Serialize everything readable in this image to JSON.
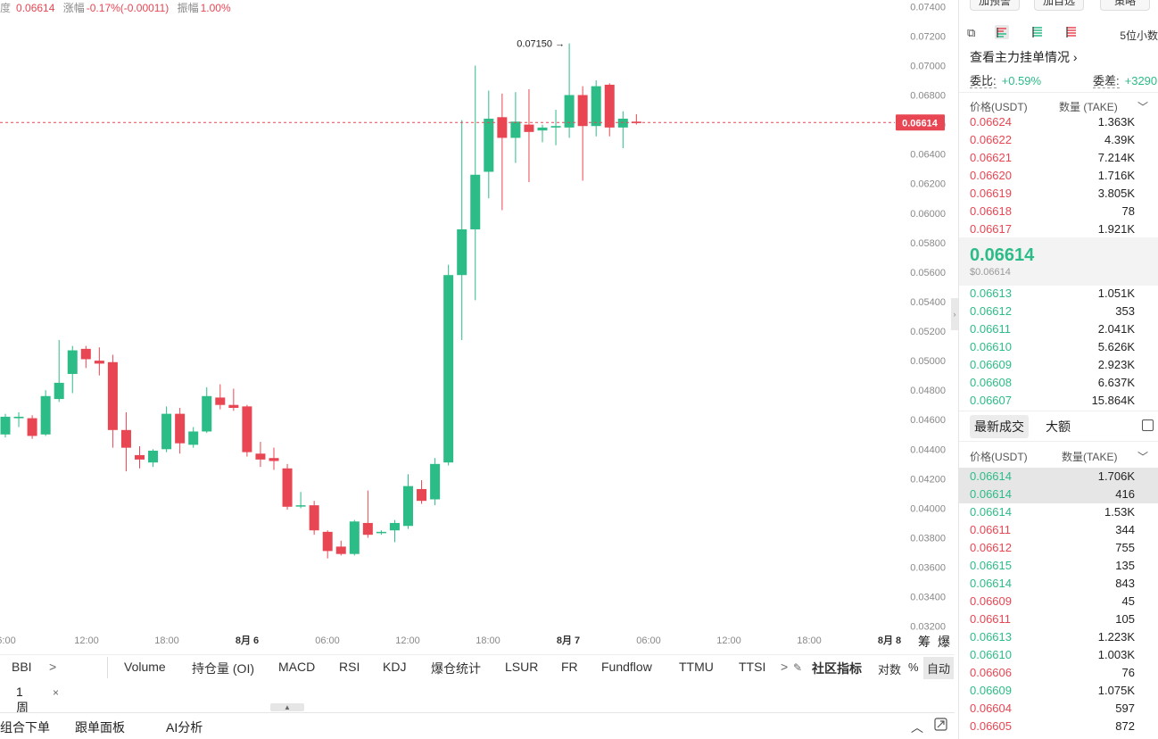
{
  "info_bar": {
    "price": "0.06614",
    "change_label": "涨幅",
    "change": "-0.17%(-0.00011)",
    "amplitude_label": "振幅",
    "amplitude": "1.00%"
  },
  "chart_data": {
    "type": "candlestick",
    "price_axis": {
      "ticks": [
        "0.07400",
        "0.07200",
        "0.07000",
        "0.06800",
        "0.06600",
        "0.06400",
        "0.06200",
        "0.06000",
        "0.05800",
        "0.05600",
        "0.05400",
        "0.05200",
        "0.05000",
        "0.04800",
        "0.04600",
        "0.04400",
        "0.04200",
        "0.04000",
        "0.03800",
        "0.03600",
        "0.03400",
        "0.03200"
      ],
      "range": [
        0.0318,
        0.0742
      ]
    },
    "time_axis": {
      "ticks": [
        {
          "label": "6:00",
          "bold": false
        },
        {
          "label": "12:00",
          "bold": false
        },
        {
          "label": "18:00",
          "bold": false
        },
        {
          "label": "8月 6",
          "bold": true
        },
        {
          "label": "06:00",
          "bold": false
        },
        {
          "label": "12:00",
          "bold": false
        },
        {
          "label": "18:00",
          "bold": false
        },
        {
          "label": "8月 7",
          "bold": true
        },
        {
          "label": "06:00",
          "bold": false
        },
        {
          "label": "12:00",
          "bold": false
        },
        {
          "label": "18:00",
          "bold": false
        },
        {
          "label": "8月 8",
          "bold": true
        }
      ]
    },
    "current_price": "0.06614",
    "max_annotation": "0.07150",
    "colors": {
      "up": "#2cbc87",
      "down": "#e84653"
    },
    "candles": [
      {
        "o": 0.045,
        "h": 0.0464,
        "l": 0.0448,
        "c": 0.0462
      },
      {
        "o": 0.0461,
        "h": 0.0465,
        "l": 0.0455,
        "c": 0.0462
      },
      {
        "o": 0.0461,
        "h": 0.0463,
        "l": 0.0447,
        "c": 0.0449
      },
      {
        "o": 0.045,
        "h": 0.048,
        "l": 0.0449,
        "c": 0.0476
      },
      {
        "o": 0.0474,
        "h": 0.0514,
        "l": 0.0472,
        "c": 0.0485
      },
      {
        "o": 0.0491,
        "h": 0.051,
        "l": 0.0478,
        "c": 0.0507
      },
      {
        "o": 0.0508,
        "h": 0.051,
        "l": 0.0495,
        "c": 0.0501
      },
      {
        "o": 0.05,
        "h": 0.0509,
        "l": 0.049,
        "c": 0.0498
      },
      {
        "o": 0.0499,
        "h": 0.0504,
        "l": 0.0441,
        "c": 0.0453
      },
      {
        "o": 0.0453,
        "h": 0.0465,
        "l": 0.0425,
        "c": 0.0441
      },
      {
        "o": 0.0436,
        "h": 0.0442,
        "l": 0.0427,
        "c": 0.0433
      },
      {
        "o": 0.0431,
        "h": 0.044,
        "l": 0.0428,
        "c": 0.0439
      },
      {
        "o": 0.044,
        "h": 0.0469,
        "l": 0.0438,
        "c": 0.0464
      },
      {
        "o": 0.0464,
        "h": 0.0468,
        "l": 0.0437,
        "c": 0.0444
      },
      {
        "o": 0.0443,
        "h": 0.0455,
        "l": 0.0441,
        "c": 0.0452
      },
      {
        "o": 0.0452,
        "h": 0.0482,
        "l": 0.0451,
        "c": 0.0476
      },
      {
        "o": 0.0475,
        "h": 0.0484,
        "l": 0.0467,
        "c": 0.047
      },
      {
        "o": 0.047,
        "h": 0.0481,
        "l": 0.0466,
        "c": 0.0468
      },
      {
        "o": 0.0469,
        "h": 0.047,
        "l": 0.0435,
        "c": 0.0438
      },
      {
        "o": 0.0437,
        "h": 0.0445,
        "l": 0.0428,
        "c": 0.0433
      },
      {
        "o": 0.0434,
        "h": 0.0441,
        "l": 0.0426,
        "c": 0.0432
      },
      {
        "o": 0.0427,
        "h": 0.043,
        "l": 0.0399,
        "c": 0.0401
      },
      {
        "o": 0.0402,
        "h": 0.0411,
        "l": 0.04,
        "c": 0.0402
      },
      {
        "o": 0.0402,
        "h": 0.0405,
        "l": 0.0382,
        "c": 0.0385
      },
      {
        "o": 0.0384,
        "h": 0.0385,
        "l": 0.0366,
        "c": 0.0371
      },
      {
        "o": 0.0374,
        "h": 0.0378,
        "l": 0.0368,
        "c": 0.0369
      },
      {
        "o": 0.0369,
        "h": 0.0392,
        "l": 0.0368,
        "c": 0.0391
      },
      {
        "o": 0.039,
        "h": 0.0412,
        "l": 0.038,
        "c": 0.0382
      },
      {
        "o": 0.0384,
        "h": 0.0385,
        "l": 0.0382,
        "c": 0.0384
      },
      {
        "o": 0.0385,
        "h": 0.0392,
        "l": 0.0377,
        "c": 0.039
      },
      {
        "o": 0.0388,
        "h": 0.0423,
        "l": 0.0386,
        "c": 0.0415
      },
      {
        "o": 0.0413,
        "h": 0.0419,
        "l": 0.0403,
        "c": 0.0405
      },
      {
        "o": 0.0406,
        "h": 0.0434,
        "l": 0.0402,
        "c": 0.043
      },
      {
        "o": 0.0431,
        "h": 0.0565,
        "l": 0.0429,
        "c": 0.0558
      },
      {
        "o": 0.0558,
        "h": 0.0663,
        "l": 0.0514,
        "c": 0.0589
      },
      {
        "o": 0.0589,
        "h": 0.07,
        "l": 0.0541,
        "c": 0.0626
      },
      {
        "o": 0.0628,
        "h": 0.0683,
        "l": 0.061,
        "c": 0.0664
      },
      {
        "o": 0.0665,
        "h": 0.0681,
        "l": 0.0602,
        "c": 0.0651
      },
      {
        "o": 0.0651,
        "h": 0.0682,
        "l": 0.0634,
        "c": 0.0662
      },
      {
        "o": 0.066,
        "h": 0.0684,
        "l": 0.0621,
        "c": 0.0655
      },
      {
        "o": 0.0656,
        "h": 0.066,
        "l": 0.0648,
        "c": 0.0658
      },
      {
        "o": 0.0658,
        "h": 0.067,
        "l": 0.0646,
        "c": 0.0659
      },
      {
        "o": 0.0658,
        "h": 0.0715,
        "l": 0.0651,
        "c": 0.068
      },
      {
        "o": 0.068,
        "h": 0.0686,
        "l": 0.0622,
        "c": 0.0659
      },
      {
        "o": 0.0659,
        "h": 0.069,
        "l": 0.0652,
        "c": 0.0686
      },
      {
        "o": 0.0687,
        "h": 0.0688,
        "l": 0.0652,
        "c": 0.0658
      },
      {
        "o": 0.0658,
        "h": 0.0669,
        "l": 0.0644,
        "c": 0.0664
      },
      {
        "o": 0.0662,
        "h": 0.0667,
        "l": 0.066,
        "c": 0.0661
      }
    ]
  },
  "indicator_bar": {
    "items": [
      "BBI",
      "Volume",
      "持仓量 (OI)",
      "MACD",
      "RSI",
      "KDJ",
      "爆仓统计",
      "LSUR",
      "FR",
      "Fundflow",
      "TTMU",
      "TTSI"
    ],
    "more_arrow": ">",
    "community": "社区指标",
    "log": "对数",
    "percent": "%",
    "auto": "自动",
    "axis_labels": [
      "筹",
      "爆"
    ],
    "bbi_arrow": ">"
  },
  "interval_row": {
    "interval": "1周",
    "close": "×"
  },
  "bottom_bar": {
    "tabs": [
      "组合下单",
      "跟单面板",
      "AI分析"
    ]
  },
  "orderbook": {
    "top_buttons": [
      "加预警",
      "加自选",
      "策略"
    ],
    "precision": "5位小数",
    "main_orders_link": "查看主力挂单情况",
    "ratio_label": "委比:",
    "ratio_value": "+0.59%",
    "diff_label": "委差:",
    "diff_value": "+3290",
    "header": {
      "price": "价格(USDT)",
      "qty": "数量 (TAKE)"
    },
    "asks": [
      {
        "p": "0.06624",
        "q": "1.363K"
      },
      {
        "p": "0.06622",
        "q": "4.39K"
      },
      {
        "p": "0.06621",
        "q": "7.214K"
      },
      {
        "p": "0.06620",
        "q": "1.716K"
      },
      {
        "p": "0.06619",
        "q": "3.805K"
      },
      {
        "p": "0.06618",
        "q": "78"
      },
      {
        "p": "0.06617",
        "q": "1.921K"
      }
    ],
    "mid_price": "0.06614",
    "mid_usd": "$0.06614",
    "bids": [
      {
        "p": "0.06613",
        "q": "1.051K"
      },
      {
        "p": "0.06612",
        "q": "353"
      },
      {
        "p": "0.06611",
        "q": "2.041K"
      },
      {
        "p": "0.06610",
        "q": "5.626K"
      },
      {
        "p": "0.06609",
        "q": "2.923K"
      },
      {
        "p": "0.06608",
        "q": "6.637K"
      },
      {
        "p": "0.06607",
        "q": "15.864K"
      }
    ]
  },
  "trades": {
    "tab_latest": "最新成交",
    "tab_large": "大额",
    "header": {
      "price": "价格(USDT)",
      "qty": "数量(TAKE)"
    },
    "rows": [
      {
        "p": "0.06614",
        "q": "1.706K",
        "side": "buy"
      },
      {
        "p": "0.06614",
        "q": "416",
        "side": "buy"
      },
      {
        "p": "0.06614",
        "q": "1.53K",
        "side": "buy"
      },
      {
        "p": "0.06611",
        "q": "344",
        "side": "sell"
      },
      {
        "p": "0.06612",
        "q": "755",
        "side": "sell"
      },
      {
        "p": "0.06615",
        "q": "135",
        "side": "buy"
      },
      {
        "p": "0.06614",
        "q": "843",
        "side": "buy"
      },
      {
        "p": "0.06609",
        "q": "45",
        "side": "sell"
      },
      {
        "p": "0.06611",
        "q": "105",
        "side": "sell"
      },
      {
        "p": "0.06613",
        "q": "1.223K",
        "side": "buy"
      },
      {
        "p": "0.06610",
        "q": "1.003K",
        "side": "buy"
      },
      {
        "p": "0.06606",
        "q": "76",
        "side": "sell"
      },
      {
        "p": "0.06609",
        "q": "1.075K",
        "side": "buy"
      },
      {
        "p": "0.06604",
        "q": "597",
        "side": "sell"
      },
      {
        "p": "0.06605",
        "q": "872",
        "side": "sell"
      }
    ]
  }
}
